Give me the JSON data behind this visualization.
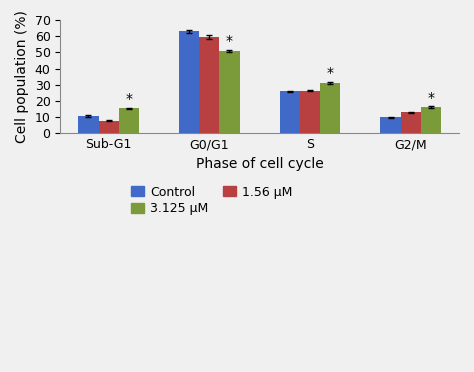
{
  "categories": [
    "Sub-G1",
    "G0/G1",
    "S",
    "G2/M"
  ],
  "series": {
    "Control": {
      "values": [
        10.5,
        63.0,
        26.0,
        10.0
      ],
      "errors": [
        0.6,
        1.0,
        0.5,
        0.3
      ],
      "color": "#4169C8"
    },
    "1.56 μM": {
      "values": [
        8.0,
        59.5,
        26.5,
        13.0
      ],
      "errors": [
        0.4,
        1.2,
        0.5,
        0.4
      ],
      "color": "#B84040"
    },
    "3.125 μM": {
      "values": [
        15.5,
        51.0,
        31.0,
        16.2
      ],
      "errors": [
        0.5,
        0.8,
        0.7,
        0.5
      ],
      "color": "#7B9A3A"
    }
  },
  "xlabel": "Phase of cell cycle",
  "ylabel": "Cell population (%)",
  "ylim": [
    0,
    70
  ],
  "yticks": [
    0,
    10,
    20,
    30,
    40,
    50,
    60,
    70
  ],
  "significance_markers": {
    "Sub-G1": [
      false,
      false,
      true
    ],
    "G0/G1": [
      false,
      false,
      true
    ],
    "S": [
      false,
      false,
      true
    ],
    "G2/M": [
      false,
      false,
      true
    ]
  },
  "bar_width": 0.2,
  "legend_labels": [
    "Control",
    "1.56 μM",
    "3.125 μM"
  ],
  "legend_colors": [
    "#4169C8",
    "#B84040",
    "#7B9A3A"
  ],
  "background_color": "#F0F0F0",
  "axis_fontsize": 10,
  "tick_fontsize": 9,
  "legend_fontsize": 9
}
